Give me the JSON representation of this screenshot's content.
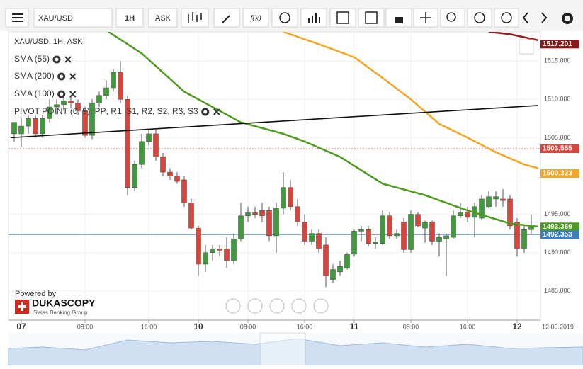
{
  "toolbar": {
    "symbol": "XAU/USD",
    "period": "1H",
    "side": "ASK",
    "fx": "f(x)"
  },
  "chart_data": {
    "type": "candlestick",
    "legend": {
      "instrument": "XAU/USD, 1H, ASK"
    },
    "up_color": "#3f9a3a",
    "down_color": "#d8453b",
    "grid": true,
    "ylim": [
      1481.2,
      1518.8
    ],
    "yticks": [
      {
        "value": 1485,
        "label": "1485.000"
      },
      {
        "value": 1490,
        "label": "1490.000"
      },
      {
        "value": 1495,
        "label": "1495.000"
      },
      {
        "value": 1500,
        "label": "1500.000"
      },
      {
        "value": 1505,
        "label": "1505.000"
      },
      {
        "value": 1510,
        "label": "1510.000"
      },
      {
        "value": 1515,
        "label": "1515.000"
      }
    ],
    "xlim": [
      -0.8,
      74.3
    ],
    "xticks": [
      {
        "value": 1,
        "label": "07"
      },
      {
        "value": 10,
        "label": "08:00"
      },
      {
        "value": 19,
        "label": "16:00"
      },
      {
        "value": 26,
        "label": "10"
      },
      {
        "value": 33,
        "label": "08:00"
      },
      {
        "value": 41,
        "label": "16:00"
      },
      {
        "value": 48,
        "label": "11"
      },
      {
        "value": 56,
        "label": "08:00"
      },
      {
        "value": 64,
        "label": "16:00"
      },
      {
        "value": 71,
        "label": "12"
      }
    ],
    "date_label": "12.09.2019",
    "candles": {
      "open": [
        1505.5,
        1505.5,
        1506.5,
        1507.5,
        1505.5,
        1507.5,
        1509,
        1509.3,
        1509.8,
        1509.5,
        1508.5,
        1505.3,
        1509.5,
        1510.5,
        1511.5,
        1513.5,
        1510,
        1498.5,
        1501.5,
        1504.5,
        1505.5,
        1502.5,
        1500.5,
        1500,
        1499.5,
        1496.5,
        1493.2,
        1488.5,
        1490,
        1490.5,
        1490.5,
        1489,
        1491.8,
        1494.8,
        1495.2,
        1495.5,
        1495.5,
        1492.2,
        1495.8,
        1498.5,
        1496,
        1494,
        1491.5,
        1492.5,
        1491,
        1486.5,
        1487.5,
        1488,
        1489.8,
        1492.8,
        1493,
        1491.2,
        1491.2,
        1494.8,
        1492.2,
        1494,
        1490.4,
        1495,
        1493.2,
        1494,
        1491.5,
        1491.8,
        1492,
        1494.8,
        1495.3,
        1494.6,
        1494.5,
        1496,
        1497,
        1497,
        1497,
        1494,
        1490.5,
        1493
      ],
      "high": [
        1507,
        1507.5,
        1508,
        1508,
        1508,
        1510,
        1510,
        1510.5,
        1510.5,
        1510,
        1509,
        1510,
        1511,
        1512.5,
        1514,
        1515,
        1510.5,
        1502,
        1505.5,
        1506,
        1506,
        1503,
        1501,
        1500.5,
        1500,
        1497,
        1493.5,
        1491,
        1491,
        1491,
        1492,
        1492.5,
        1496.5,
        1496,
        1496,
        1496.5,
        1496,
        1496.5,
        1500.5,
        1499.5,
        1497,
        1495,
        1493,
        1493,
        1492,
        1488.5,
        1489,
        1490,
        1493,
        1493.5,
        1493.5,
        1492,
        1495.5,
        1495.3,
        1493,
        1494.5,
        1495.5,
        1495.3,
        1494.2,
        1494.2,
        1492.5,
        1492.5,
        1495.5,
        1496.5,
        1496,
        1496.5,
        1497.5,
        1498,
        1498,
        1498.3,
        1497.5,
        1494.5,
        1493.5,
        1495
      ],
      "low": [
        1504.5,
        1503.8,
        1505.5,
        1505,
        1505,
        1507,
        1508,
        1508.5,
        1508.8,
        1508,
        1505,
        1504.8,
        1509,
        1510,
        1511,
        1509.5,
        1497.5,
        1498,
        1501,
        1504,
        1502,
        1500,
        1499.5,
        1499,
        1496,
        1493,
        1487,
        1487.5,
        1489,
        1489.5,
        1488,
        1488.5,
        1491.5,
        1494,
        1494.5,
        1494,
        1491.5,
        1490,
        1495,
        1495.5,
        1493.5,
        1491,
        1491,
        1490,
        1485.5,
        1486,
        1487,
        1487.8,
        1489.5,
        1491.5,
        1490.8,
        1490.5,
        1491,
        1491.8,
        1491.8,
        1490,
        1490,
        1493.3,
        1491.3,
        1491,
        1489.5,
        1487,
        1491.8,
        1494.5,
        1494,
        1492,
        1494.3,
        1495.8,
        1496,
        1496,
        1493,
        1489.5,
        1490,
        1492.5
      ],
      "close": [
        1507,
        1506.5,
        1507.5,
        1505.5,
        1507.5,
        1509,
        1509.3,
        1509.8,
        1509.5,
        1508.5,
        1505.3,
        1509.5,
        1510.5,
        1511.5,
        1513.5,
        1510,
        1498.5,
        1501.5,
        1504.5,
        1505.5,
        1502.5,
        1500.5,
        1500,
        1499.3,
        1496.5,
        1493.2,
        1488.5,
        1490,
        1490.5,
        1490.3,
        1489,
        1491.8,
        1494.8,
        1495.2,
        1495,
        1494.8,
        1492.2,
        1495.8,
        1498.5,
        1496,
        1494,
        1491.5,
        1492.5,
        1490.5,
        1487,
        1487.8,
        1488.2,
        1489.8,
        1492.8,
        1493,
        1491.2,
        1491.4,
        1494.8,
        1492.2,
        1492.5,
        1490.4,
        1495,
        1493.5,
        1494,
        1491.5,
        1492,
        1492.2,
        1494.8,
        1495.2,
        1494.6,
        1496,
        1497,
        1497.3,
        1497.3,
        1496.8,
        1493.5,
        1490.5,
        1493,
        1493.4
      ]
    },
    "series": [
      {
        "name": "SMA (55)",
        "color": "#4e9a1e",
        "x": [
          13,
          18,
          24,
          28,
          32,
          38,
          41,
          46,
          52,
          58,
          64,
          70,
          74
        ],
        "values": [
          1519,
          1516,
          1511,
          1509,
          1507,
          1505.5,
          1504.5,
          1502.5,
          1499,
          1497.5,
          1495.5,
          1493.8,
          1493.4
        ]
      },
      {
        "name": "SMA (200)",
        "color": "#9b1c1c",
        "x": [
          67,
          70,
          74
        ],
        "values": [
          1518.8,
          1518.5,
          1517.7
        ]
      },
      {
        "name": "SMA (100)",
        "color": "#f5a623",
        "x": [
          38,
          43,
          48,
          52,
          56,
          60,
          64,
          68,
          72,
          74
        ],
        "values": [
          1518.8,
          1517.2,
          1515.5,
          1512.8,
          1510,
          1506.8,
          1505,
          1503.1,
          1501.5,
          1501
        ]
      },
      {
        "name": "PIVOT POINT (0, 9)",
        "color": "#111111",
        "x": [
          -0.5,
          74
        ],
        "values": [
          1505,
          1509.2
        ],
        "levels": [
          {
            "name": ", PP",
            "color": "#4a90d9"
          },
          {
            "name": ", R1",
            "color": "#3f9a3a"
          },
          {
            "name": ", S1",
            "color": "#d8453b"
          },
          {
            "name": ", R2",
            "color": "#d8453b"
          },
          {
            "name": ", S2",
            "color": "#f08a24"
          },
          {
            "name": ", R3",
            "color": "#f06a24"
          },
          {
            "name": ", S3",
            "color": "#f5c400"
          }
        ]
      }
    ],
    "price_labels": [
      {
        "value": 1517.201,
        "color": "#8b1a1a"
      },
      {
        "value": 1503.555,
        "color": "#d8453b",
        "line_style": "dashed"
      },
      {
        "value": 1500.323,
        "color": "#f5a623"
      },
      {
        "value": 1493.369,
        "color": "#4e9a1e"
      },
      {
        "value": 1492.353,
        "color": "#3a7fc1",
        "line_style": "solid"
      }
    ]
  },
  "branding": {
    "powered": "Powered by",
    "name": "DUKASCOPY",
    "tag": "Swiss Banking Group"
  }
}
